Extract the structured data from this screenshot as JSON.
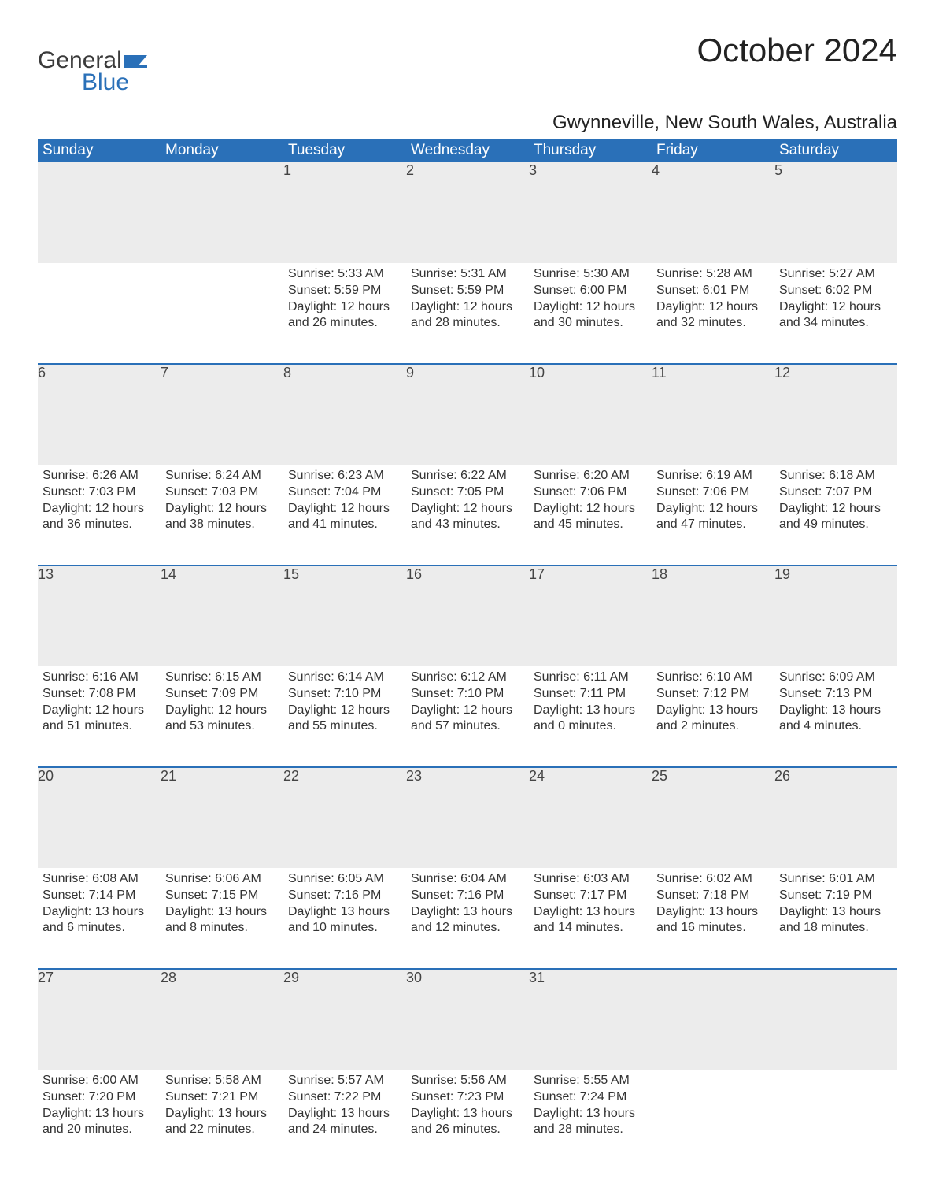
{
  "brand": {
    "word1": "General",
    "word2": "Blue",
    "icon_color": "#2a70b8",
    "text_dark": "#3a3a3a"
  },
  "title": "October 2024",
  "location": "Gwynneville, New South Wales, Australia",
  "colors": {
    "header_bg": "#2a70b8",
    "header_text": "#ffffff",
    "daynum_bg": "#ececec",
    "row_border": "#2a70b8",
    "body_text": "#333333",
    "page_bg": "#ffffff"
  },
  "typography": {
    "title_fontsize": 42,
    "location_fontsize": 24,
    "header_fontsize": 19,
    "daynum_fontsize": 18,
    "body_fontsize": 16
  },
  "weekdays": [
    "Sunday",
    "Monday",
    "Tuesday",
    "Wednesday",
    "Thursday",
    "Friday",
    "Saturday"
  ],
  "weeks": [
    [
      null,
      null,
      {
        "day": "1",
        "sunrise": "Sunrise: 5:33 AM",
        "sunset": "Sunset: 5:59 PM",
        "daylight": "Daylight: 12 hours and 26 minutes."
      },
      {
        "day": "2",
        "sunrise": "Sunrise: 5:31 AM",
        "sunset": "Sunset: 5:59 PM",
        "daylight": "Daylight: 12 hours and 28 minutes."
      },
      {
        "day": "3",
        "sunrise": "Sunrise: 5:30 AM",
        "sunset": "Sunset: 6:00 PM",
        "daylight": "Daylight: 12 hours and 30 minutes."
      },
      {
        "day": "4",
        "sunrise": "Sunrise: 5:28 AM",
        "sunset": "Sunset: 6:01 PM",
        "daylight": "Daylight: 12 hours and 32 minutes."
      },
      {
        "day": "5",
        "sunrise": "Sunrise: 5:27 AM",
        "sunset": "Sunset: 6:02 PM",
        "daylight": "Daylight: 12 hours and 34 minutes."
      }
    ],
    [
      {
        "day": "6",
        "sunrise": "Sunrise: 6:26 AM",
        "sunset": "Sunset: 7:03 PM",
        "daylight": "Daylight: 12 hours and 36 minutes."
      },
      {
        "day": "7",
        "sunrise": "Sunrise: 6:24 AM",
        "sunset": "Sunset: 7:03 PM",
        "daylight": "Daylight: 12 hours and 38 minutes."
      },
      {
        "day": "8",
        "sunrise": "Sunrise: 6:23 AM",
        "sunset": "Sunset: 7:04 PM",
        "daylight": "Daylight: 12 hours and 41 minutes."
      },
      {
        "day": "9",
        "sunrise": "Sunrise: 6:22 AM",
        "sunset": "Sunset: 7:05 PM",
        "daylight": "Daylight: 12 hours and 43 minutes."
      },
      {
        "day": "10",
        "sunrise": "Sunrise: 6:20 AM",
        "sunset": "Sunset: 7:06 PM",
        "daylight": "Daylight: 12 hours and 45 minutes."
      },
      {
        "day": "11",
        "sunrise": "Sunrise: 6:19 AM",
        "sunset": "Sunset: 7:06 PM",
        "daylight": "Daylight: 12 hours and 47 minutes."
      },
      {
        "day": "12",
        "sunrise": "Sunrise: 6:18 AM",
        "sunset": "Sunset: 7:07 PM",
        "daylight": "Daylight: 12 hours and 49 minutes."
      }
    ],
    [
      {
        "day": "13",
        "sunrise": "Sunrise: 6:16 AM",
        "sunset": "Sunset: 7:08 PM",
        "daylight": "Daylight: 12 hours and 51 minutes."
      },
      {
        "day": "14",
        "sunrise": "Sunrise: 6:15 AM",
        "sunset": "Sunset: 7:09 PM",
        "daylight": "Daylight: 12 hours and 53 minutes."
      },
      {
        "day": "15",
        "sunrise": "Sunrise: 6:14 AM",
        "sunset": "Sunset: 7:10 PM",
        "daylight": "Daylight: 12 hours and 55 minutes."
      },
      {
        "day": "16",
        "sunrise": "Sunrise: 6:12 AM",
        "sunset": "Sunset: 7:10 PM",
        "daylight": "Daylight: 12 hours and 57 minutes."
      },
      {
        "day": "17",
        "sunrise": "Sunrise: 6:11 AM",
        "sunset": "Sunset: 7:11 PM",
        "daylight": "Daylight: 13 hours and 0 minutes."
      },
      {
        "day": "18",
        "sunrise": "Sunrise: 6:10 AM",
        "sunset": "Sunset: 7:12 PM",
        "daylight": "Daylight: 13 hours and 2 minutes."
      },
      {
        "day": "19",
        "sunrise": "Sunrise: 6:09 AM",
        "sunset": "Sunset: 7:13 PM",
        "daylight": "Daylight: 13 hours and 4 minutes."
      }
    ],
    [
      {
        "day": "20",
        "sunrise": "Sunrise: 6:08 AM",
        "sunset": "Sunset: 7:14 PM",
        "daylight": "Daylight: 13 hours and 6 minutes."
      },
      {
        "day": "21",
        "sunrise": "Sunrise: 6:06 AM",
        "sunset": "Sunset: 7:15 PM",
        "daylight": "Daylight: 13 hours and 8 minutes."
      },
      {
        "day": "22",
        "sunrise": "Sunrise: 6:05 AM",
        "sunset": "Sunset: 7:16 PM",
        "daylight": "Daylight: 13 hours and 10 minutes."
      },
      {
        "day": "23",
        "sunrise": "Sunrise: 6:04 AM",
        "sunset": "Sunset: 7:16 PM",
        "daylight": "Daylight: 13 hours and 12 minutes."
      },
      {
        "day": "24",
        "sunrise": "Sunrise: 6:03 AM",
        "sunset": "Sunset: 7:17 PM",
        "daylight": "Daylight: 13 hours and 14 minutes."
      },
      {
        "day": "25",
        "sunrise": "Sunrise: 6:02 AM",
        "sunset": "Sunset: 7:18 PM",
        "daylight": "Daylight: 13 hours and 16 minutes."
      },
      {
        "day": "26",
        "sunrise": "Sunrise: 6:01 AM",
        "sunset": "Sunset: 7:19 PM",
        "daylight": "Daylight: 13 hours and 18 minutes."
      }
    ],
    [
      {
        "day": "27",
        "sunrise": "Sunrise: 6:00 AM",
        "sunset": "Sunset: 7:20 PM",
        "daylight": "Daylight: 13 hours and 20 minutes."
      },
      {
        "day": "28",
        "sunrise": "Sunrise: 5:58 AM",
        "sunset": "Sunset: 7:21 PM",
        "daylight": "Daylight: 13 hours and 22 minutes."
      },
      {
        "day": "29",
        "sunrise": "Sunrise: 5:57 AM",
        "sunset": "Sunset: 7:22 PM",
        "daylight": "Daylight: 13 hours and 24 minutes."
      },
      {
        "day": "30",
        "sunrise": "Sunrise: 5:56 AM",
        "sunset": "Sunset: 7:23 PM",
        "daylight": "Daylight: 13 hours and 26 minutes."
      },
      {
        "day": "31",
        "sunrise": "Sunrise: 5:55 AM",
        "sunset": "Sunset: 7:24 PM",
        "daylight": "Daylight: 13 hours and 28 minutes."
      },
      null,
      null
    ]
  ]
}
